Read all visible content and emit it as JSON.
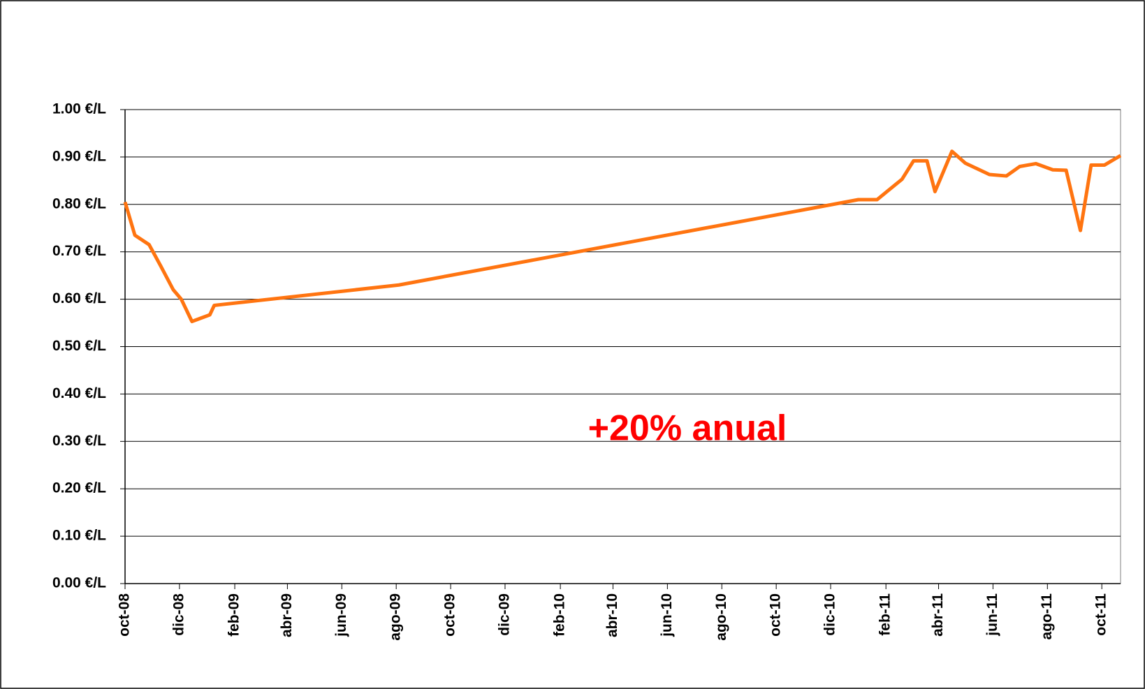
{
  "chart_data": {
    "type": "line",
    "annotation": "+20% anual",
    "x": [
      "2008-10-01",
      "2008-10-12",
      "2008-10-28",
      "2008-11-10",
      "2008-11-24",
      "2008-12-03",
      "2008-12-15",
      "2009-01-04",
      "2009-01-09",
      "2009-08-04",
      "2011-01-01",
      "2011-01-22",
      "2011-02-04",
      "2011-02-19",
      "2011-03-04",
      "2011-03-19",
      "2011-03-28",
      "2011-04-16",
      "2011-05-01",
      "2011-05-28",
      "2011-06-16",
      "2011-07-01",
      "2011-07-19",
      "2011-08-07",
      "2011-08-22",
      "2011-09-07",
      "2011-09-19",
      "2011-10-04",
      "2011-10-22"
    ],
    "series": [
      {
        "color": "#ff7410",
        "values": [
          0.805,
          0.735,
          0.715,
          0.67,
          0.62,
          0.6,
          0.553,
          0.567,
          0.587,
          0.63,
          0.81,
          0.81,
          0.83,
          0.853,
          0.892,
          0.892,
          0.827,
          0.912,
          0.887,
          0.863,
          0.86,
          0.88,
          0.886,
          0.873,
          0.872,
          0.745,
          0.883,
          0.883,
          0.903
        ]
      }
    ],
    "xlim": [
      "2008-10-01",
      "2011-10-22"
    ],
    "xticks": [
      {
        "value": "2008-10-01",
        "label": "oct-08"
      },
      {
        "value": "2008-12-01",
        "label": "dic-08"
      },
      {
        "value": "2009-02-01",
        "label": "feb-09"
      },
      {
        "value": "2009-04-01",
        "label": "abr-09"
      },
      {
        "value": "2009-06-01",
        "label": "jun-09"
      },
      {
        "value": "2009-08-01",
        "label": "ago-09"
      },
      {
        "value": "2009-10-01",
        "label": "oct-09"
      },
      {
        "value": "2009-12-01",
        "label": "dic-09"
      },
      {
        "value": "2010-02-01",
        "label": "feb-10"
      },
      {
        "value": "2010-04-01",
        "label": "abr-10"
      },
      {
        "value": "2010-06-01",
        "label": "jun-10"
      },
      {
        "value": "2010-08-01",
        "label": "ago-10"
      },
      {
        "value": "2010-10-01",
        "label": "oct-10"
      },
      {
        "value": "2010-12-01",
        "label": "dic-10"
      },
      {
        "value": "2011-02-01",
        "label": "feb-11"
      },
      {
        "value": "2011-04-01",
        "label": "abr-11"
      },
      {
        "value": "2011-06-01",
        "label": "jun-11"
      },
      {
        "value": "2011-08-01",
        "label": "ago-11"
      },
      {
        "value": "2011-10-01",
        "label": "oct-11"
      }
    ],
    "ylim": [
      0,
      1
    ],
    "yticks": [
      {
        "value": 0,
        "label": "0.00 €/L"
      },
      {
        "value": 0.1,
        "label": "0.10 €/L"
      },
      {
        "value": 0.2,
        "label": "0.20 €/L"
      },
      {
        "value": 0.3,
        "label": "0.30 €/L"
      },
      {
        "value": 0.4,
        "label": "0.40 €/L"
      },
      {
        "value": 0.5,
        "label": "0.50 €/L"
      },
      {
        "value": 0.6,
        "label": "0.60 €/L"
      },
      {
        "value": 0.7,
        "label": "0.70 €/L"
      },
      {
        "value": 0.8,
        "label": "0.80 €/L"
      },
      {
        "value": 0.9,
        "label": "0.90 €/L"
      },
      {
        "value": 1,
        "label": "1.00 €/L"
      }
    ],
    "grid": true
  }
}
